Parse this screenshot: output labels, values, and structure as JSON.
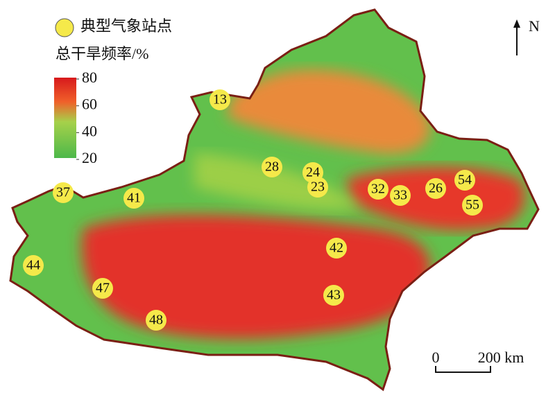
{
  "legend": {
    "station_label": "典型气象站点"
  },
  "colorbar": {
    "title": "总干旱频率/%",
    "ticks": [
      80,
      60,
      40,
      20
    ]
  },
  "north": "N",
  "scale_bar": {
    "start": "0",
    "end": "200 km"
  },
  "stations": [
    13,
    28,
    24,
    23,
    32,
    33,
    26,
    54,
    55,
    37,
    41,
    44,
    47,
    48,
    42,
    43
  ]
}
